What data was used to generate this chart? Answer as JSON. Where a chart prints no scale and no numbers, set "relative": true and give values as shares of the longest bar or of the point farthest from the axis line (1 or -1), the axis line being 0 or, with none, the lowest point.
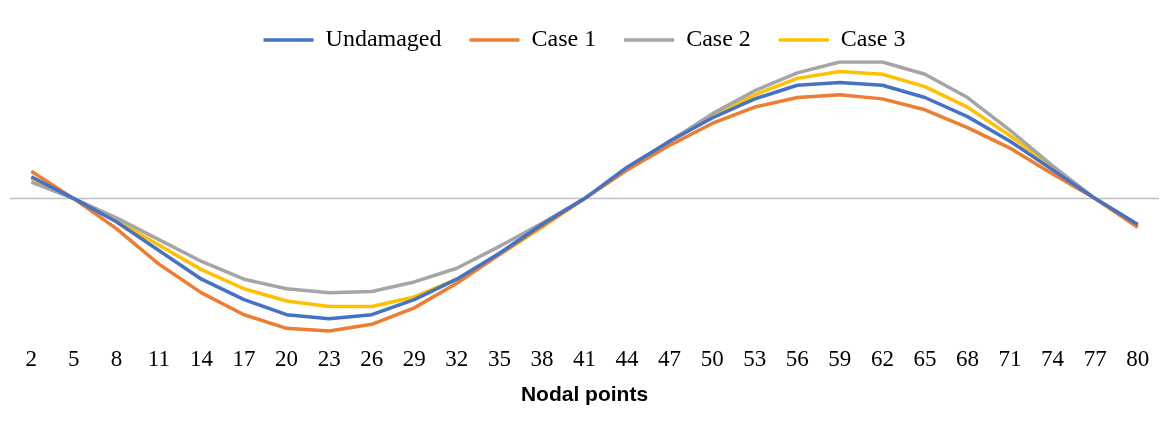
{
  "chart_data": {
    "type": "line",
    "xlabel": "Nodal points",
    "relative": true,
    "legend": "top",
    "categories": [
      "2",
      "5",
      "8",
      "11",
      "14",
      "17",
      "20",
      "23",
      "26",
      "29",
      "32",
      "35",
      "38",
      "41",
      "44",
      "47",
      "50",
      "53",
      "56",
      "59",
      "62",
      "65",
      "68",
      "71",
      "74",
      "77",
      "80"
    ],
    "series": [
      {
        "name": "Undamaged",
        "color": "#4472c4",
        "values": [
          0.16,
          0,
          -0.17,
          -0.38,
          -0.59,
          -0.74,
          -0.85,
          -0.88,
          -0.85,
          -0.74,
          -0.59,
          -0.4,
          -0.19,
          0,
          0.23,
          0.42,
          0.59,
          0.73,
          0.83,
          0.85,
          0.83,
          0.74,
          0.6,
          0.42,
          0.21,
          0,
          -0.19
        ]
      },
      {
        "name": "Case 1",
        "color": "#ed7d31",
        "values": [
          0.2,
          0,
          -0.22,
          -0.48,
          -0.69,
          -0.85,
          -0.95,
          -0.97,
          -0.92,
          -0.8,
          -0.62,
          -0.41,
          -0.2,
          0,
          0.21,
          0.39,
          0.55,
          0.67,
          0.74,
          0.76,
          0.73,
          0.65,
          0.52,
          0.37,
          0.18,
          0,
          -0.21
        ]
      },
      {
        "name": "Case 2",
        "color": "#a5a5a5",
        "values": [
          0.12,
          0,
          -0.14,
          -0.3,
          -0.46,
          -0.59,
          -0.66,
          -0.69,
          -0.68,
          -0.61,
          -0.51,
          -0.35,
          -0.18,
          0,
          0.21,
          0.42,
          0.62,
          0.79,
          0.92,
          1,
          1,
          0.91,
          0.74,
          0.5,
          0.24,
          0,
          -0.19
        ]
      },
      {
        "name": "Case 3",
        "color": "#ffc000",
        "values": [
          0.15,
          0,
          -0.16,
          -0.34,
          -0.52,
          -0.66,
          -0.75,
          -0.79,
          -0.79,
          -0.72,
          -0.59,
          -0.41,
          -0.21,
          0,
          0.21,
          0.42,
          0.6,
          0.76,
          0.88,
          0.93,
          0.91,
          0.82,
          0.67,
          0.46,
          0.23,
          0,
          -0.2
        ]
      }
    ]
  }
}
